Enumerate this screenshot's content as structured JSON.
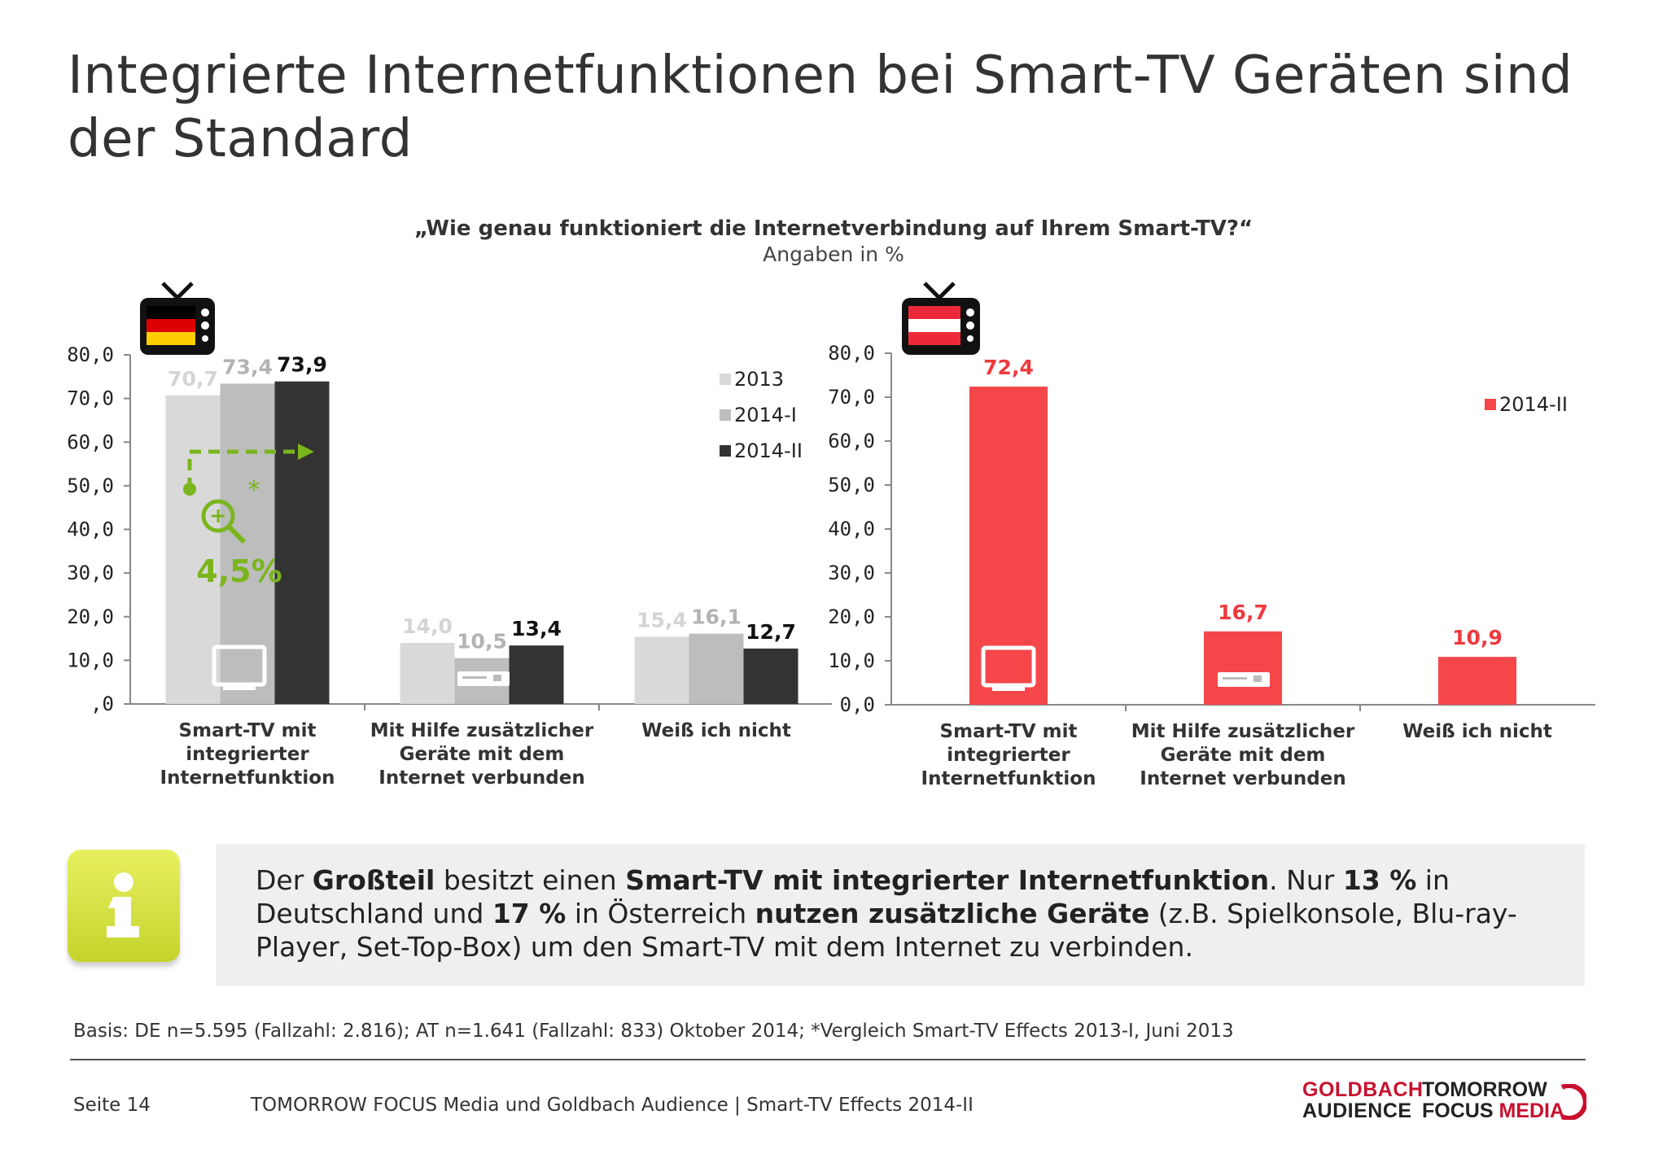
{
  "title": "Integrierte Internetfunktionen bei Smart-TV Geräten sind der Standard",
  "question": "„Wie genau funktioniert die Internetverbindung auf Ihrem Smart-TV?“",
  "question_sub": "Angaben in %",
  "chart_data": [
    {
      "type": "bar",
      "country": "DE",
      "categories": [
        "Smart-TV mit integrierter Internetfunktion",
        "Mit Hilfe zusätzlicher Geräte mit dem Internet verbunden",
        "Weiß ich nicht"
      ],
      "category_lines": [
        [
          "Smart-TV mit",
          "integrierter",
          "Internetfunktion"
        ],
        [
          "Mit Hilfe zusätzlicher",
          "Geräte mit dem",
          "Internet verbunden"
        ],
        [
          "Weiß ich nicht"
        ]
      ],
      "series": [
        {
          "name": "2013",
          "values": [
            70.7,
            14.0,
            15.4
          ],
          "labels": [
            "70,7",
            "14,0",
            "15,4"
          ],
          "color": "#d9d9d9",
          "label_color": "#d4d4d4"
        },
        {
          "name": "2014-I",
          "values": [
            73.4,
            10.5,
            16.1
          ],
          "labels": [
            "73,4",
            "10,5",
            "16,1"
          ],
          "color": "#bdbdbd",
          "label_color": "#b3b3b3"
        },
        {
          "name": "2014-II",
          "values": [
            73.9,
            13.4,
            12.7
          ],
          "labels": [
            "73,9",
            "13,4",
            "12,7"
          ],
          "color": "#333333",
          "label_color": "#111111"
        }
      ],
      "ylim": [
        0,
        80
      ],
      "yticks": [
        ",0",
        "10,0",
        "20,0",
        "30,0",
        "40,0",
        "50,0",
        "60,0",
        "70,0",
        "80,0"
      ],
      "legend_position": "top-right",
      "annotation": {
        "text": "4,5%",
        "asterisk": "*",
        "color": "#7ab51d"
      }
    },
    {
      "type": "bar",
      "country": "AT",
      "categories": [
        "Smart-TV mit integrierter Internetfunktion",
        "Mit Hilfe zusätzlicher Geräte mit dem Internet verbunden",
        "Weiß ich nicht"
      ],
      "category_lines": [
        [
          "Smart-TV mit",
          "integrierter",
          "Internetfunktion"
        ],
        [
          "Mit Hilfe zusätzlicher",
          "Geräte mit dem",
          "Internet verbunden"
        ],
        [
          "Weiß ich nicht"
        ]
      ],
      "series": [
        {
          "name": "2014-II",
          "values": [
            72.4,
            16.7,
            10.9
          ],
          "labels": [
            "72,4",
            "16,7",
            "10,9"
          ],
          "color": "#f5474a",
          "label_color": "#ee3a3e"
        }
      ],
      "ylim": [
        0,
        80
      ],
      "yticks": [
        "0,0",
        "10,0",
        "20,0",
        "30,0",
        "40,0",
        "50,0",
        "60,0",
        "70,0",
        "80,0"
      ],
      "legend_position": "top-right"
    }
  ],
  "info": {
    "p1": "Der ",
    "b1": "Großteil",
    "p2": " besitzt einen ",
    "b2": "Smart-TV mit integrierter Internetfunktion",
    "p3": ". Nur ",
    "b3": "13 %",
    "p4": " in Deutschland und ",
    "b4": "17 %",
    "p5": " in Österreich ",
    "b5": "nutzen zusätzliche Geräte",
    "p6": " (z.B. Spielkonsole, Blu-ray-Player, Set-Top-Box) um den Smart-TV mit dem Internet zu verbinden."
  },
  "basis": "Basis: DE n=5.595 (Fallzahl: 2.816); AT n=1.641 (Fallzahl: 833) Oktober 2014; *Vergleich Smart-TV Effects 2013-I, Juni 2013",
  "footer": {
    "page": "Seite 14",
    "source": "TOMORROW FOCUS Media und Goldbach Audience | Smart-TV Effects 2014-II",
    "logo_goldbach_1": "GOLDBACH",
    "logo_goldbach_2": "AUDIENCE",
    "logo_tf_1": "TOMORROW",
    "logo_tf_2a": "FOCUS ",
    "logo_tf_2b": "MEDIA"
  }
}
